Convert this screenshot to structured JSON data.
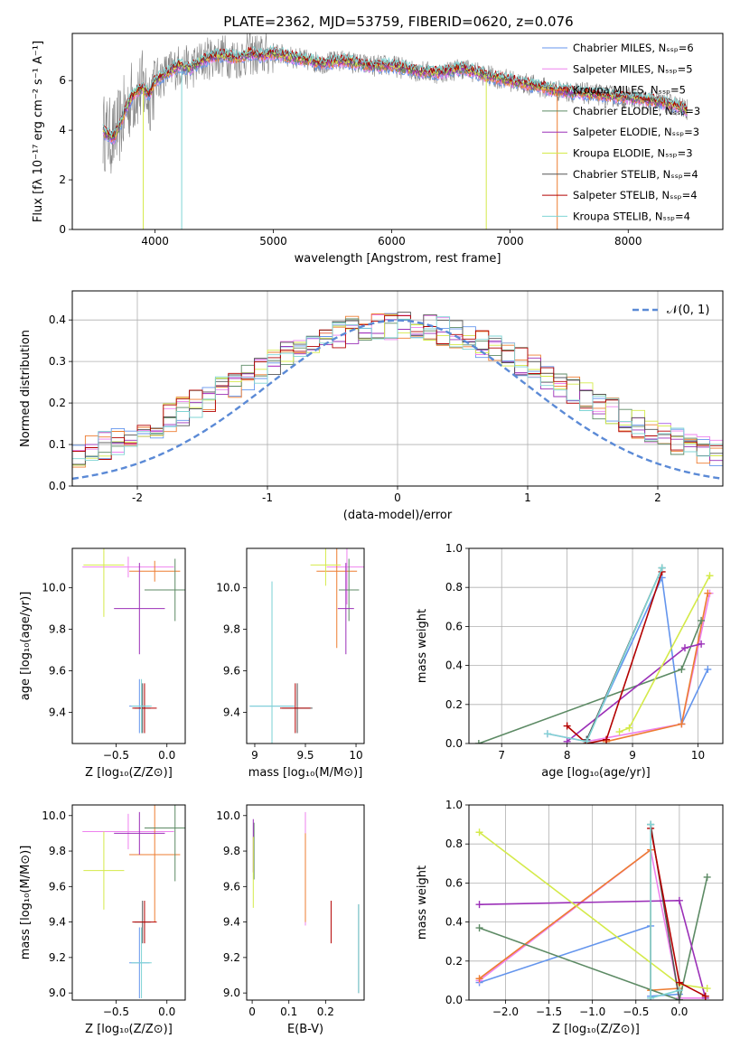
{
  "chart_data": [
    {
      "id": "spectrum",
      "type": "line",
      "title": "PLATE=2362, MJD=53759, FIBERID=0620, z=0.076",
      "xlabel": "wavelength [Angstrom, rest frame]",
      "ylabel": "Flux [fλ 10⁻¹⁷ erg cm⁻² s⁻¹ A⁻¹]",
      "xlim": [
        3300,
        8800
      ],
      "ylim": [
        0,
        7.9
      ],
      "xticks": [
        4000,
        5000,
        6000,
        7000,
        8000
      ],
      "yticks": [
        0,
        2,
        4,
        6
      ],
      "grid": false,
      "legend_position": "right",
      "data_color": "#808080",
      "series": [
        {
          "name": "Chabrier MILES, Nₛₛₚ=6",
          "color": "#6495ed"
        },
        {
          "name": "Salpeter MILES, Nₛₛₚ=5",
          "color": "#ee82ee"
        },
        {
          "name": "Kroupa MILES, Nₛₛₚ=5",
          "color": "#ed7d31"
        },
        {
          "name": "Chabrier ELODIE, Nₛₛₚ=3",
          "color": "#5c8a64"
        },
        {
          "name": "Salpeter ELODIE, Nₛₛₚ=3",
          "color": "#9b30b8"
        },
        {
          "name": "Kroupa ELODIE, Nₛₛₚ=3",
          "color": "#d4ea4a"
        },
        {
          "name": "Chabrier STELIB, Nₛₛₚ=4",
          "color": "#555555"
        },
        {
          "name": "Salpeter STELIB, Nₛₛₚ=4",
          "color": "#b30000"
        },
        {
          "name": "Kroupa STELIB, Nₛₛₚ=4",
          "color": "#7fd4d4"
        }
      ],
      "model_curve": {
        "x": [
          3550,
          3600,
          3650,
          3700,
          3750,
          3800,
          3850,
          3900,
          3950,
          4000,
          4100,
          4200,
          4300,
          4400,
          4500,
          4600,
          4700,
          4800,
          4900,
          5000,
          5200,
          5400,
          5600,
          5800,
          6000,
          6200,
          6400,
          6600,
          6800,
          7000,
          7200,
          7400,
          7600,
          7800,
          8000,
          8200,
          8400,
          8500
        ],
        "y": [
          4.0,
          3.8,
          3.7,
          4.2,
          4.8,
          5.3,
          5.6,
          5.7,
          5.4,
          6.0,
          6.3,
          6.6,
          6.5,
          6.8,
          7.0,
          7.0,
          6.9,
          7.1,
          7.0,
          7.1,
          6.9,
          6.7,
          6.8,
          6.6,
          6.6,
          6.4,
          6.3,
          6.5,
          6.2,
          6.0,
          5.8,
          5.6,
          5.5,
          5.4,
          5.3,
          5.2,
          5.0,
          4.8
        ]
      }
    },
    {
      "id": "residuals",
      "type": "histogram",
      "xlabel": "(data-model)/error",
      "ylabel": "Normed distribution",
      "xlim": [
        -2.5,
        2.5
      ],
      "ylim": [
        0,
        0.47
      ],
      "xticks": [
        -2,
        -1,
        0,
        1,
        2
      ],
      "yticks": [
        0.0,
        0.1,
        0.2,
        0.3,
        0.4
      ],
      "grid": true,
      "reference_curve": {
        "label": "𝒩(0, 1)",
        "color": "#5b8ad6",
        "mean": 0,
        "sigma": 1
      },
      "legend_position": "top-right"
    },
    {
      "id": "age-vs-Z",
      "type": "scatter",
      "xlabel": "Z [log₁₀(Z/Z⊙)]",
      "ylabel": "age  [log₁₀(age/yr)]",
      "xlim": [
        -0.93,
        0.18
      ],
      "ylim": [
        9.25,
        10.19
      ],
      "xticks": [
        -0.5,
        0.0
      ],
      "xtick_labels": [
        "−0.5",
        "0.0"
      ],
      "yticks": [
        9.4,
        9.6,
        9.8,
        10.0
      ],
      "points": [
        {
          "x": -0.27,
          "y": 9.43,
          "xerr": 0.1,
          "yerr": 0.13,
          "color": "#6495ed"
        },
        {
          "x": -0.38,
          "y": 10.1,
          "xerr": 0.45,
          "yerr": 0.05,
          "color": "#ee82ee"
        },
        {
          "x": -0.12,
          "y": 10.08,
          "xerr": 0.25,
          "yerr": 0.05,
          "color": "#ed7d31"
        },
        {
          "x": 0.08,
          "y": 9.99,
          "xerr": 0.3,
          "yerr": 0.15,
          "color": "#5c8a64"
        },
        {
          "x": -0.27,
          "y": 9.9,
          "xerr": 0.25,
          "yerr": 0.22,
          "color": "#9b30b8"
        },
        {
          "x": -0.62,
          "y": 10.11,
          "xerr": 0.2,
          "yerr": 0.25,
          "color": "#d4ea4a"
        },
        {
          "x": -0.24,
          "y": 9.42,
          "xerr": 0.08,
          "yerr": 0.12,
          "color": "#555555"
        },
        {
          "x": -0.22,
          "y": 9.42,
          "xerr": 0.12,
          "yerr": 0.12,
          "color": "#b30000"
        },
        {
          "x": -0.25,
          "y": 9.43,
          "xerr": 0.1,
          "yerr": 0.13,
          "color": "#7fd4d4"
        }
      ]
    },
    {
      "id": "age-vs-mass",
      "type": "scatter",
      "xlabel": "mass [log₁₀(M/M⊙)]",
      "ylabel": "",
      "xlim": [
        8.92,
        10.08
      ],
      "ylim": [
        9.25,
        10.19
      ],
      "xticks": [
        9.0,
        9.5,
        10.0
      ],
      "yticks": [
        9.4,
        9.6,
        9.8,
        10.0
      ],
      "points": [
        {
          "x": 9.17,
          "y": 9.43,
          "xerr": 0.22,
          "yerr": 0.6,
          "color": "#6495ed"
        },
        {
          "x": 9.91,
          "y": 10.1,
          "xerr": 0.2,
          "yerr": 0.18,
          "color": "#ee82ee"
        },
        {
          "x": 9.81,
          "y": 10.08,
          "xerr": 0.2,
          "yerr": 0.37,
          "color": "#ed7d31"
        },
        {
          "x": 9.93,
          "y": 9.99,
          "xerr": 0.1,
          "yerr": 0.15,
          "color": "#5c8a64"
        },
        {
          "x": 9.9,
          "y": 9.9,
          "xerr": 0.08,
          "yerr": 0.22,
          "color": "#9b30b8"
        },
        {
          "x": 9.7,
          "y": 10.11,
          "xerr": 0.15,
          "yerr": 0.1,
          "color": "#d4ea4a"
        },
        {
          "x": 9.42,
          "y": 9.42,
          "xerr": 0.15,
          "yerr": 0.12,
          "color": "#555555"
        },
        {
          "x": 9.4,
          "y": 9.42,
          "xerr": 0.15,
          "yerr": 0.12,
          "color": "#b30000"
        },
        {
          "x": 9.17,
          "y": 9.43,
          "xerr": 0.22,
          "yerr": 0.6,
          "color": "#7fd4d4"
        }
      ]
    },
    {
      "id": "weight-vs-age",
      "type": "line",
      "xlabel": "age  [log₁₀(age/yr)]",
      "ylabel": "mass weight",
      "xlim": [
        6.5,
        10.38
      ],
      "ylim": [
        0,
        1.0
      ],
      "xticks": [
        7,
        8,
        9,
        10
      ],
      "yticks": [
        0.0,
        0.2,
        0.4,
        0.6,
        0.8,
        1.0
      ],
      "grid": true,
      "series": [
        {
          "color": "#6495ed",
          "x": [
            8.3,
            9.45,
            9.75,
            10.15
          ],
          "y": [
            0.02,
            0.85,
            0.1,
            0.38
          ]
        },
        {
          "color": "#ee82ee",
          "x": [
            7.7,
            8.3,
            9.75,
            10.18
          ],
          "y": [
            0.05,
            0.01,
            0.1,
            0.77
          ]
        },
        {
          "color": "#ed7d31",
          "x": [
            8.6,
            9.75,
            10.15
          ],
          "y": [
            0.01,
            0.1,
            0.77
          ]
        },
        {
          "color": "#5c8a64",
          "x": [
            6.65,
            9.75,
            10.05
          ],
          "y": [
            0.0,
            0.38,
            0.63
          ]
        },
        {
          "color": "#9b30b8",
          "x": [
            8.0,
            9.8,
            10.05
          ],
          "y": [
            0.01,
            0.49,
            0.51
          ]
        },
        {
          "color": "#d4ea4a",
          "x": [
            8.8,
            8.95,
            10.18
          ],
          "y": [
            0.06,
            0.08,
            0.86
          ]
        },
        {
          "color": "#555555",
          "x": [
            8.3,
            9.45
          ],
          "y": [
            0.02,
            0.9
          ]
        },
        {
          "color": "#b30000",
          "x": [
            8.0,
            8.3,
            8.6,
            9.45
          ],
          "y": [
            0.09,
            0.0,
            0.02,
            0.88
          ]
        },
        {
          "color": "#7fd4d4",
          "x": [
            7.7,
            8.3,
            9.45
          ],
          "y": [
            0.05,
            0.01,
            0.9
          ]
        }
      ]
    },
    {
      "id": "mass-vs-Z",
      "type": "scatter",
      "xlabel": "Z [log₁₀(Z/Z⊙)]",
      "ylabel": "mass [log₁₀(M/M⊙)]",
      "xlim": [
        -0.93,
        0.18
      ],
      "ylim": [
        8.96,
        10.06
      ],
      "xticks": [
        -0.5,
        0.0
      ],
      "xtick_labels": [
        "−0.5",
        "0.0"
      ],
      "yticks": [
        9.0,
        9.2,
        9.4,
        9.6,
        9.8,
        10.0
      ],
      "points": [
        {
          "x": -0.27,
          "y": 9.17,
          "xerr": 0.1,
          "yerr": 0.2,
          "color": "#6495ed"
        },
        {
          "x": -0.38,
          "y": 9.91,
          "xerr": 0.45,
          "yerr": 0.1,
          "color": "#ee82ee"
        },
        {
          "x": -0.12,
          "y": 9.78,
          "xerr": 0.25,
          "yerr": 0.38,
          "color": "#ed7d31"
        },
        {
          "x": 0.08,
          "y": 9.93,
          "xerr": 0.3,
          "yerr": 0.3,
          "color": "#5c8a64"
        },
        {
          "x": -0.27,
          "y": 9.9,
          "xerr": 0.25,
          "yerr": 0.12,
          "color": "#9b30b8"
        },
        {
          "x": -0.62,
          "y": 9.69,
          "xerr": 0.2,
          "yerr": 0.22,
          "color": "#d4ea4a"
        },
        {
          "x": -0.24,
          "y": 9.4,
          "xerr": 0.08,
          "yerr": 0.12,
          "color": "#555555"
        },
        {
          "x": -0.22,
          "y": 9.4,
          "xerr": 0.12,
          "yerr": 0.12,
          "color": "#b30000"
        },
        {
          "x": -0.25,
          "y": 9.17,
          "xerr": 0.1,
          "yerr": 0.2,
          "color": "#7fd4d4"
        }
      ]
    },
    {
      "id": "mass-vs-ebv",
      "type": "scatter",
      "xlabel": "E(B-V)",
      "ylabel": "",
      "xlim": [
        -0.015,
        0.305
      ],
      "ylim": [
        8.96,
        10.06
      ],
      "xticks": [
        0.0,
        0.1,
        0.2
      ],
      "yticks": [
        9.0,
        9.2,
        9.4,
        9.6,
        9.8,
        10.0
      ],
      "points": [
        {
          "x": 0.29,
          "y": 9.25,
          "yerr": 0.25,
          "color": "#6495ed"
        },
        {
          "x": 0.145,
          "y": 9.7,
          "yerr": 0.32,
          "color": "#ee82ee"
        },
        {
          "x": 0.145,
          "y": 9.65,
          "yerr": 0.25,
          "color": "#ed7d31"
        },
        {
          "x": 0.005,
          "y": 9.8,
          "yerr": 0.16,
          "color": "#5c8a64"
        },
        {
          "x": 0.003,
          "y": 9.83,
          "yerr": 0.15,
          "color": "#9b30b8"
        },
        {
          "x": 0.003,
          "y": 9.68,
          "yerr": 0.2,
          "color": "#d4ea4a"
        },
        {
          "x": 0.29,
          "y": 9.25,
          "yerr": 0.25,
          "color": "#555555"
        },
        {
          "x": 0.215,
          "y": 9.4,
          "yerr": 0.12,
          "color": "#b30000"
        },
        {
          "x": 0.29,
          "y": 9.25,
          "yerr": 0.25,
          "color": "#7fd4d4"
        }
      ]
    },
    {
      "id": "weight-vs-Z",
      "type": "line",
      "xlabel": "Z [log₁₀(Z/Z⊙)]",
      "ylabel": "mass weight",
      "xlim": [
        -2.42,
        0.5
      ],
      "ylim": [
        0,
        1.0
      ],
      "xticks": [
        -2.0,
        -1.5,
        -1.0,
        -0.5,
        0.0
      ],
      "xtick_labels": [
        "−2.0",
        "−1.5",
        "−1.0",
        "−0.5",
        "0.0"
      ],
      "yticks": [
        0.0,
        0.2,
        0.4,
        0.6,
        0.8,
        1.0
      ],
      "grid": true,
      "series": [
        {
          "color": "#6495ed",
          "x": [
            -2.3,
            -0.33,
            -0.33,
            0.0
          ],
          "y": [
            0.09,
            0.38,
            0.02,
            0.03
          ]
        },
        {
          "color": "#ee82ee",
          "x": [
            -2.3,
            -0.33,
            0.0,
            0.3
          ],
          "y": [
            0.1,
            0.77,
            0.01,
            0.01
          ]
        },
        {
          "color": "#ed7d31",
          "x": [
            -2.3,
            -0.33,
            -0.33,
            0.0
          ],
          "y": [
            0.11,
            0.77,
            0.05,
            0.06
          ]
        },
        {
          "color": "#5c8a64",
          "x": [
            -2.3,
            0.0,
            0.32
          ],
          "y": [
            0.37,
            0.0,
            0.63
          ]
        },
        {
          "color": "#9b30b8",
          "x": [
            -2.3,
            0.0,
            0.3
          ],
          "y": [
            0.49,
            0.51,
            0.01
          ]
        },
        {
          "color": "#d4ea4a",
          "x": [
            -2.3,
            0.0,
            0.32
          ],
          "y": [
            0.86,
            0.08,
            0.06
          ]
        },
        {
          "color": "#555555",
          "x": [
            -0.33,
            0.0
          ],
          "y": [
            0.9,
            0.0
          ]
        },
        {
          "color": "#b30000",
          "x": [
            -0.33,
            0.0,
            0.3
          ],
          "y": [
            0.88,
            0.09,
            0.02
          ]
        },
        {
          "color": "#7fd4d4",
          "x": [
            -0.33,
            -0.33,
            0.0
          ],
          "y": [
            0.9,
            0.01,
            0.05
          ]
        }
      ]
    }
  ]
}
